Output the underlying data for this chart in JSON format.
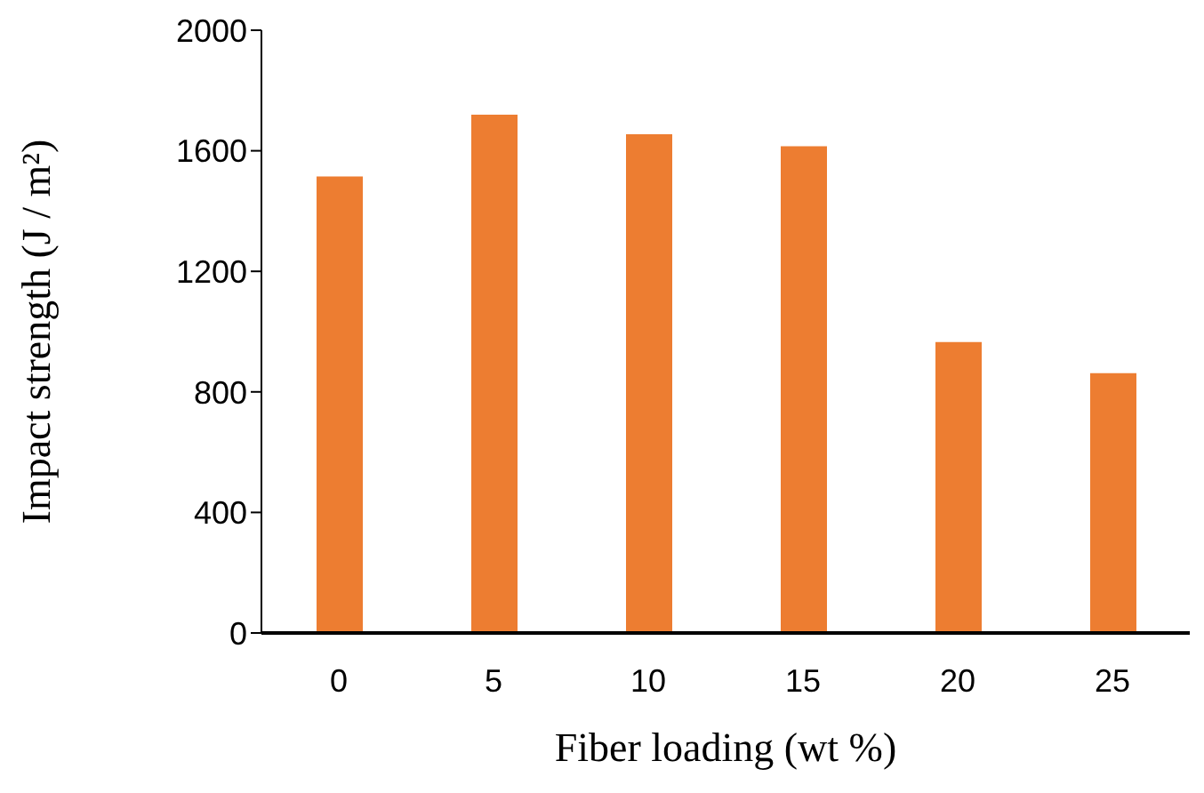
{
  "chart_data": {
    "type": "bar",
    "xlabel": "Fiber loading (wt %)",
    "ylabel": "Impact strength (J / m²)",
    "categories": [
      "0",
      "5",
      "10",
      "15",
      "20",
      "25"
    ],
    "values": [
      1515,
      1720,
      1655,
      1615,
      965,
      862
    ],
    "color": "#ed7d31",
    "ylim": [
      0,
      2000
    ],
    "yticks": [
      0,
      400,
      800,
      1200,
      1600,
      2000
    ],
    "grid": false,
    "legend": false
  }
}
